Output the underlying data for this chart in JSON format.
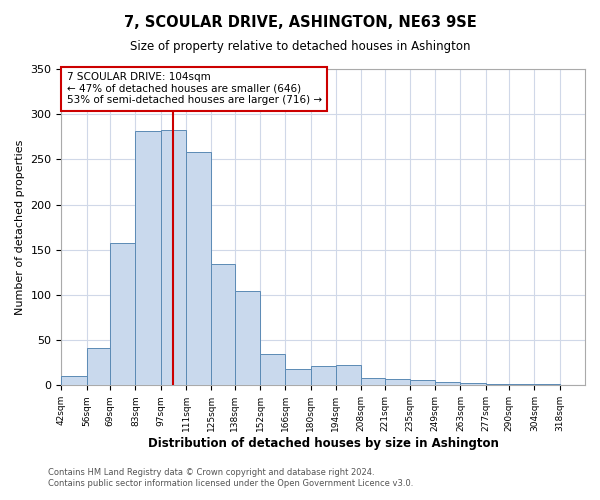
{
  "title": "7, SCOULAR DRIVE, ASHINGTON, NE63 9SE",
  "subtitle": "Size of property relative to detached houses in Ashington",
  "xlabel": "Distribution of detached houses by size in Ashington",
  "ylabel": "Number of detached properties",
  "bar_left_edges": [
    42,
    56,
    69,
    83,
    97,
    111,
    125,
    138,
    152,
    166,
    180,
    194,
    208,
    221,
    235,
    249,
    263,
    277,
    290,
    304
  ],
  "bar_widths": [
    14,
    13,
    14,
    14,
    14,
    14,
    13,
    14,
    14,
    14,
    14,
    14,
    13,
    14,
    14,
    14,
    14,
    13,
    14,
    14
  ],
  "bar_heights": [
    10,
    41,
    157,
    281,
    282,
    258,
    134,
    104,
    35,
    18,
    21,
    22,
    8,
    7,
    6,
    4,
    3,
    2,
    2,
    2
  ],
  "tick_labels": [
    "42sqm",
    "56sqm",
    "69sqm",
    "83sqm",
    "97sqm",
    "111sqm",
    "125sqm",
    "138sqm",
    "152sqm",
    "166sqm",
    "180sqm",
    "194sqm",
    "208sqm",
    "221sqm",
    "235sqm",
    "249sqm",
    "263sqm",
    "277sqm",
    "290sqm",
    "304sqm",
    "318sqm"
  ],
  "bar_color": "#c9d9ed",
  "bar_edgecolor": "#5b8ab5",
  "vline_x": 104,
  "vline_color": "#cc0000",
  "ylim": [
    0,
    350
  ],
  "yticks": [
    0,
    50,
    100,
    150,
    200,
    250,
    300,
    350
  ],
  "annotation_title": "7 SCOULAR DRIVE: 104sqm",
  "annotation_line1": "← 47% of detached houses are smaller (646)",
  "annotation_line2": "53% of semi-detached houses are larger (716) →",
  "annotation_box_color": "#ffffff",
  "annotation_box_edgecolor": "#cc0000",
  "footer1": "Contains HM Land Registry data © Crown copyright and database right 2024.",
  "footer2": "Contains public sector information licensed under the Open Government Licence v3.0.",
  "background_color": "#ffffff",
  "grid_color": "#d0d8e8"
}
